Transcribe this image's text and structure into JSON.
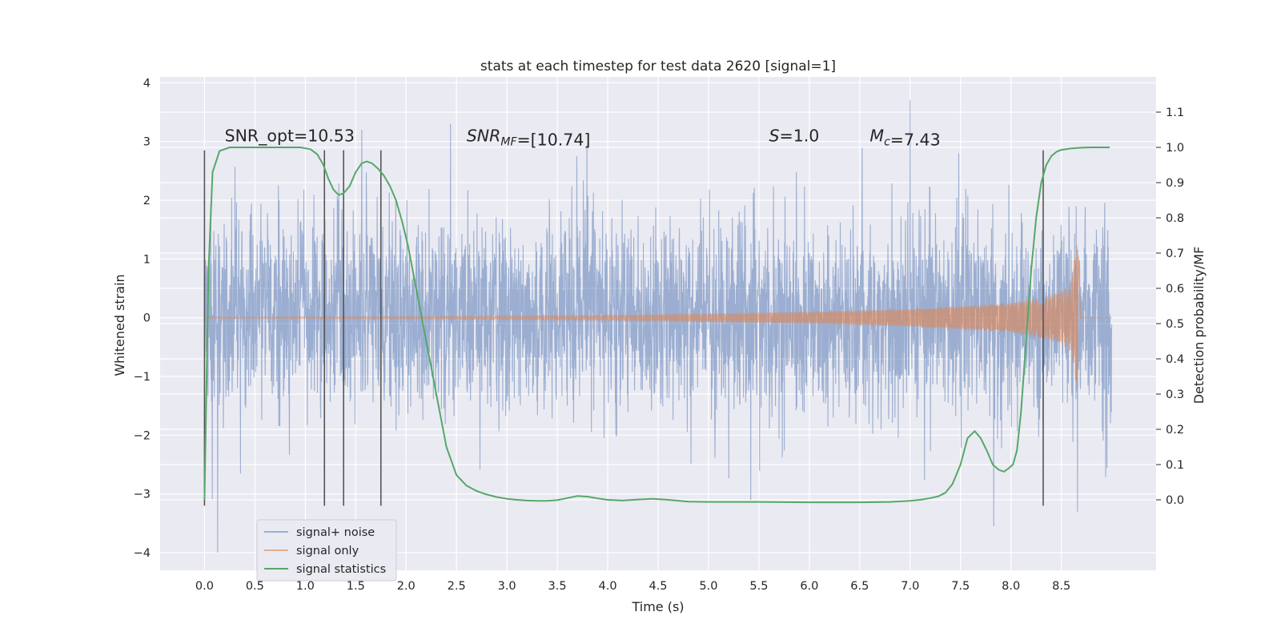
{
  "chart_data": {
    "type": "line",
    "title": "stats at each timestep for test data 2620 [signal=1]",
    "xlabel": "Time (s)",
    "ylabel_left": "Whitened strain",
    "ylabel_right": "Detection probability/MF",
    "xlim": [
      -0.44,
      9.44
    ],
    "ylim_left": [
      -4.3,
      4.1
    ],
    "ylim_right": [
      -0.2,
      1.2
    ],
    "x_ticks": [
      0.0,
      0.5,
      1.0,
      1.5,
      2.0,
      2.5,
      3.0,
      3.5,
      4.0,
      4.5,
      5.0,
      5.5,
      6.0,
      6.5,
      7.0,
      7.5,
      8.0,
      8.5
    ],
    "x_tick_labels": [
      "0.0",
      "0.5",
      "1.0",
      "1.5",
      "2.0",
      "2.5",
      "3.0",
      "3.5",
      "4.0",
      "4.5",
      "5.0",
      "5.5",
      "6.0",
      "6.5",
      "7.0",
      "7.5",
      "8.0",
      "8.5"
    ],
    "y_left_ticks": [
      4,
      3,
      2,
      1,
      0,
      -1,
      -2,
      -3,
      -4
    ],
    "y_left_tick_labels": [
      "4",
      "3",
      "2",
      "1",
      "0",
      "−1",
      "−2",
      "−3",
      "−4"
    ],
    "y_right_ticks": [
      1.1,
      1.0,
      0.9,
      0.8,
      0.7,
      0.6,
      0.5,
      0.4,
      0.3,
      0.2,
      0.1,
      0.0
    ],
    "y_right_tick_labels": [
      "1.1",
      "1.0",
      "0.9",
      "0.8",
      "0.7",
      "0.6",
      "0.5",
      "0.4",
      "0.3",
      "0.2",
      "0.1",
      "0.0"
    ],
    "grid": true,
    "legend_placement": "lower-left",
    "annotations": [
      {
        "parts": [
          {
            "t": "SNR_opt=10.53"
          }
        ],
        "x": 0.2,
        "y": 3.0
      },
      {
        "parts": [
          {
            "t": "SNR",
            "i": true
          },
          {
            "t": "MF",
            "i": true,
            "sub": true
          },
          {
            "t": "=[10.74]"
          }
        ],
        "x": 2.6,
        "y": 3.0
      },
      {
        "parts": [
          {
            "t": "S",
            "i": true
          },
          {
            "t": "=1.0"
          }
        ],
        "x": 5.6,
        "y": 3.0
      },
      {
        "parts": [
          {
            "t": "M",
            "i": true
          },
          {
            "t": "c",
            "i": true,
            "sub": true
          },
          {
            "t": "=7.43"
          }
        ],
        "x": 6.6,
        "y": 3.0
      }
    ],
    "vlines": {
      "x": [
        0.0,
        1.19,
        1.38,
        1.75,
        8.32
      ],
      "ymin": -3.2,
      "ymax": 2.85,
      "color": "#555555"
    },
    "series": [
      {
        "name": "signal+ noise",
        "color": "#4c72b0",
        "opacity": 0.5,
        "axis": "left",
        "description": "whitened noise plus signal, dense band approx ±1.3, spikes to ±3.7",
        "x_range": [
          0.0,
          9.0
        ],
        "envelope_typical": 1.3,
        "extremes": [
          [
            0.13,
            -4.0
          ],
          [
            7.0,
            3.7
          ],
          [
            7.83,
            -3.55
          ],
          [
            1.56,
            3.2
          ],
          [
            2.44,
            3.3
          ],
          [
            5.42,
            -3.1
          ],
          [
            8.66,
            -3.3
          ]
        ]
      },
      {
        "name": "signal only",
        "color": "#dd8452",
        "opacity": 0.6,
        "axis": "left",
        "description": "chirp with growing amplitude up to merger",
        "x_range": [
          0.0,
          8.67
        ],
        "amplitude": [
          [
            0.0,
            0.01
          ],
          [
            2.0,
            0.02
          ],
          [
            4.0,
            0.04
          ],
          [
            5.0,
            0.07
          ],
          [
            6.0,
            0.1
          ],
          [
            7.0,
            0.15
          ],
          [
            7.5,
            0.2
          ],
          [
            8.0,
            0.25
          ],
          [
            8.3,
            0.35
          ],
          [
            8.5,
            0.45
          ],
          [
            8.6,
            0.6
          ],
          [
            8.65,
            1.25
          ]
        ]
      },
      {
        "name": "signal statistics",
        "color": "#55a868",
        "axis": "right",
        "x": [
          0.0,
          0.04,
          0.08,
          0.15,
          0.25,
          0.4,
          0.6,
          0.8,
          0.95,
          1.05,
          1.12,
          1.18,
          1.23,
          1.28,
          1.33,
          1.38,
          1.44,
          1.5,
          1.56,
          1.61,
          1.66,
          1.72,
          1.78,
          1.84,
          1.9,
          1.96,
          2.02,
          2.1,
          2.2,
          2.3,
          2.4,
          2.5,
          2.6,
          2.7,
          2.8,
          2.9,
          3.0,
          3.1,
          3.2,
          3.3,
          3.4,
          3.5,
          3.6,
          3.7,
          3.8,
          3.9,
          4.0,
          4.15,
          4.3,
          4.45,
          4.6,
          4.8,
          5.0,
          5.5,
          6.0,
          6.5,
          6.8,
          7.0,
          7.1,
          7.2,
          7.28,
          7.35,
          7.42,
          7.5,
          7.57,
          7.64,
          7.7,
          7.76,
          7.82,
          7.88,
          7.93,
          7.98,
          8.02,
          8.06,
          8.1,
          8.15,
          8.2,
          8.25,
          8.3,
          8.35,
          8.4,
          8.45,
          8.5,
          8.6,
          8.7,
          8.8,
          8.9,
          8.98
        ],
        "y": [
          0.0,
          0.65,
          0.93,
          0.99,
          1.0,
          1.0,
          1.0,
          1.0,
          1.0,
          0.995,
          0.98,
          0.95,
          0.91,
          0.88,
          0.865,
          0.87,
          0.89,
          0.93,
          0.955,
          0.96,
          0.955,
          0.94,
          0.92,
          0.89,
          0.85,
          0.79,
          0.72,
          0.6,
          0.45,
          0.3,
          0.15,
          0.07,
          0.04,
          0.025,
          0.015,
          0.008,
          0.003,
          0.0,
          -0.002,
          -0.003,
          -0.003,
          -0.001,
          0.005,
          0.011,
          0.009,
          0.004,
          0.0,
          -0.002,
          0.001,
          0.003,
          0.0,
          -0.005,
          -0.006,
          -0.006,
          -0.007,
          -0.007,
          -0.006,
          -0.003,
          0.0,
          0.005,
          0.01,
          0.02,
          0.045,
          0.1,
          0.175,
          0.195,
          0.175,
          0.14,
          0.1,
          0.085,
          0.08,
          0.09,
          0.1,
          0.14,
          0.25,
          0.45,
          0.65,
          0.8,
          0.9,
          0.95,
          0.975,
          0.987,
          0.993,
          0.997,
          0.999,
          1.0,
          1.0,
          1.0
        ]
      }
    ]
  }
}
